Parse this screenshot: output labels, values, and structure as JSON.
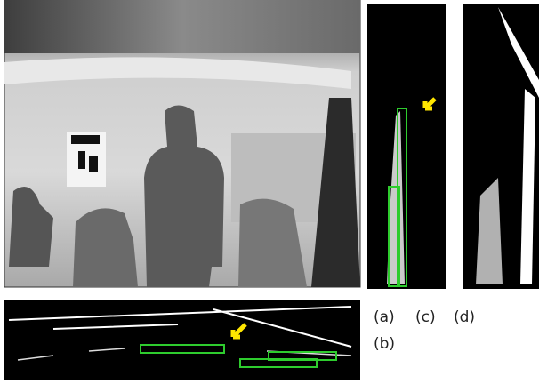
{
  "panel_labels": [
    "(a)",
    "(c)",
    "(d)",
    "(b)"
  ]
}
